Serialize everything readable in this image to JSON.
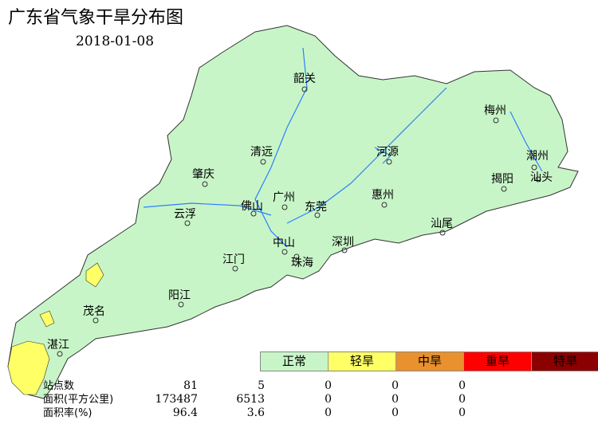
{
  "title": "广东省气象干旱分布图",
  "date": "2018-01-08",
  "cities": [
    "韶关",
    "梅州",
    "清远",
    "河源",
    "潮州",
    "肇庆",
    "揭阳",
    "汕头",
    "广州",
    "惠州",
    "佛山",
    "东莞",
    "云浮",
    "汕尾",
    "中山",
    "深圳",
    "江门",
    "珠海",
    "阳江",
    "茂名",
    "湛江"
  ],
  "legend": [
    {
      "label": "正常",
      "color": "#c8f5c8"
    },
    {
      "label": "轻旱",
      "color": "#ffff66"
    },
    {
      "label": "中旱",
      "color": "#e8912e"
    },
    {
      "label": "重旱",
      "color": "#ff0000"
    },
    {
      "label": "特旱",
      "color": "#8b0000"
    }
  ],
  "stats": {
    "rows": [
      {
        "label": "站点数",
        "values": [
          "81",
          "5",
          "0",
          "0",
          "0"
        ]
      },
      {
        "label": "面积(平方公里)",
        "values": [
          "173487",
          "6513",
          "0",
          "0",
          "0"
        ]
      },
      {
        "label": "面积率(%)",
        "values": [
          "96.4",
          "3.6",
          "0",
          "0",
          "0"
        ]
      }
    ]
  }
}
